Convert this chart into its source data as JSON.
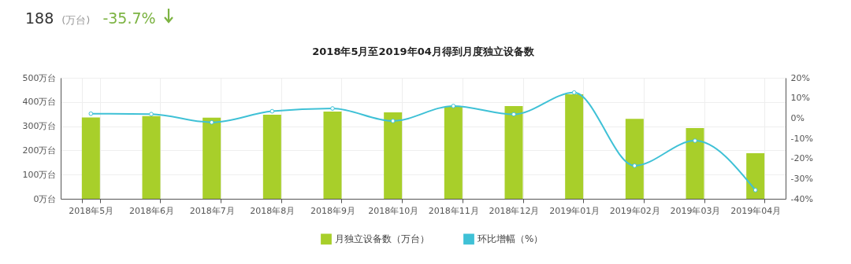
{
  "chart_data": {
    "type": "bar",
    "title": "2018年5月至2019年04月得到月度独立设备数",
    "annotations": [
      "188",
      "(万台)",
      "-35.7%"
    ],
    "categories": [
      "2018年5月",
      "2018年6月",
      "2018年7月",
      "2018年8月",
      "2018年9月",
      "2018年10月",
      "2018年11月",
      "2018年12月",
      "2019年01月",
      "2019年02月",
      "2019年03月",
      "2019年04月"
    ],
    "series": [
      {
        "name": "月独立设备数（万台）",
        "color": "#a8cf2a",
        "values": [
          336,
          342,
          335,
          347,
          360,
          357,
          380,
          383,
          432,
          330,
          292,
          188
        ]
      },
      {
        "name": "环比增幅（%）",
        "type": "line",
        "axis": "y2",
        "color": "#3fc1d6",
        "values": [
          2.2,
          2.0,
          -2.1,
          3.4,
          4.8,
          -1.4,
          6.0,
          1.9,
          12.7,
          -23.6,
          -11.2,
          -35.7
        ]
      }
    ],
    "ylim": [
      0,
      500
    ],
    "yticks": [
      {
        "value": 0,
        "label": "0万台"
      },
      {
        "value": 100,
        "label": "100万台"
      },
      {
        "value": 200,
        "label": "200万台"
      },
      {
        "value": 300,
        "label": "300万台"
      },
      {
        "value": 400,
        "label": "400万台"
      },
      {
        "value": 500,
        "label": "500万台"
      }
    ],
    "y2lim": [
      -40,
      20
    ],
    "y2ticks": [
      {
        "value": -40,
        "label": "-40%"
      },
      {
        "value": -30,
        "label": "-30%"
      },
      {
        "value": -20,
        "label": "-20%"
      },
      {
        "value": -10,
        "label": "-10%"
      },
      {
        "value": 0,
        "label": "0%"
      },
      {
        "value": 10,
        "label": "10%"
      },
      {
        "value": 20,
        "label": "20%"
      }
    ],
    "grid": true,
    "legend": "bottom",
    "marker": "circle",
    "line_style": "solid"
  }
}
